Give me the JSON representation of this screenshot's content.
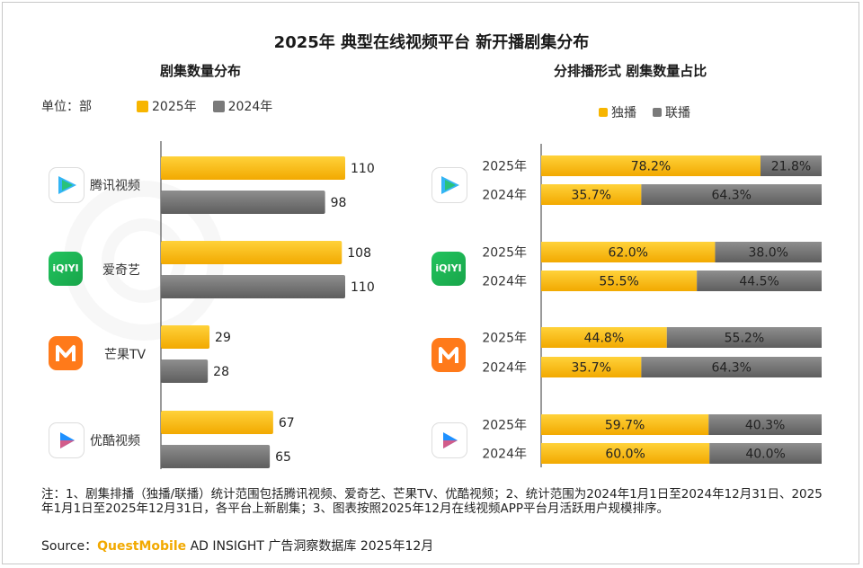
{
  "title": "2025年 典型在线视频平台 新开播剧集分布",
  "left_subtitle": "剧集数量分布",
  "right_subtitle": "分排播形式 剧集数量占比",
  "unit_label": "单位：部",
  "note": "注：1、剧集排播（独播/联播）统计范围包括腾讯视频、爱奇艺、芒果TV、优酷视频；2、统计范围为2024年1月1日至2024年12月31日、2025年1月1日至2025年12月31日，各平台上新剧集；3、图表按照2025年12月在线视频APP平台月活跃用户规模排序。",
  "source_label": "Source：",
  "source_brand": "QuestMobile",
  "source_rest": " AD INSIGHT 广告洞察数据库 2025年12月",
  "colors": {
    "yellow": "#f7b500",
    "gray": "#7a7a7a",
    "watermark": "#999999"
  },
  "platforms": [
    {
      "name": "腾讯视频",
      "logo": "tencent-video-logo"
    },
    {
      "name": "爱奇艺",
      "logo": "iqiyi-logo"
    },
    {
      "name": "芒果TV",
      "logo": "mango-tv-logo"
    },
    {
      "name": "优酷视频",
      "logo": "youku-logo"
    }
  ],
  "chart_data": [
    {
      "type": "bar",
      "orientation": "horizontal",
      "title": "剧集数量分布",
      "unit": "部",
      "categories": [
        "腾讯视频",
        "爱奇艺",
        "芒果TV",
        "优酷视频"
      ],
      "series": [
        {
          "name": "2025年",
          "values": [
            110,
            108,
            29,
            67
          ]
        },
        {
          "name": "2024年",
          "values": [
            98,
            110,
            28,
            65
          ]
        }
      ],
      "legend": "top-left",
      "grid": false
    },
    {
      "type": "bar",
      "orientation": "horizontal",
      "stacked": "percent",
      "title": "分排播形式 剧集数量占比",
      "categories": [
        "腾讯视频",
        "爱奇艺",
        "芒果TV",
        "优酷视频"
      ],
      "year_labels": [
        "2025年",
        "2024年"
      ],
      "series": [
        {
          "name": "独播",
          "values": [
            [
              78.2,
              35.7
            ],
            [
              62.0,
              55.5
            ],
            [
              44.8,
              35.7
            ],
            [
              59.7,
              60.0
            ]
          ]
        },
        {
          "name": "联播",
          "values": [
            [
              21.8,
              64.3
            ],
            [
              38.0,
              44.5
            ],
            [
              55.2,
              64.3
            ],
            [
              40.3,
              40.0
            ]
          ]
        }
      ],
      "legend": "top-center",
      "grid": false
    }
  ]
}
